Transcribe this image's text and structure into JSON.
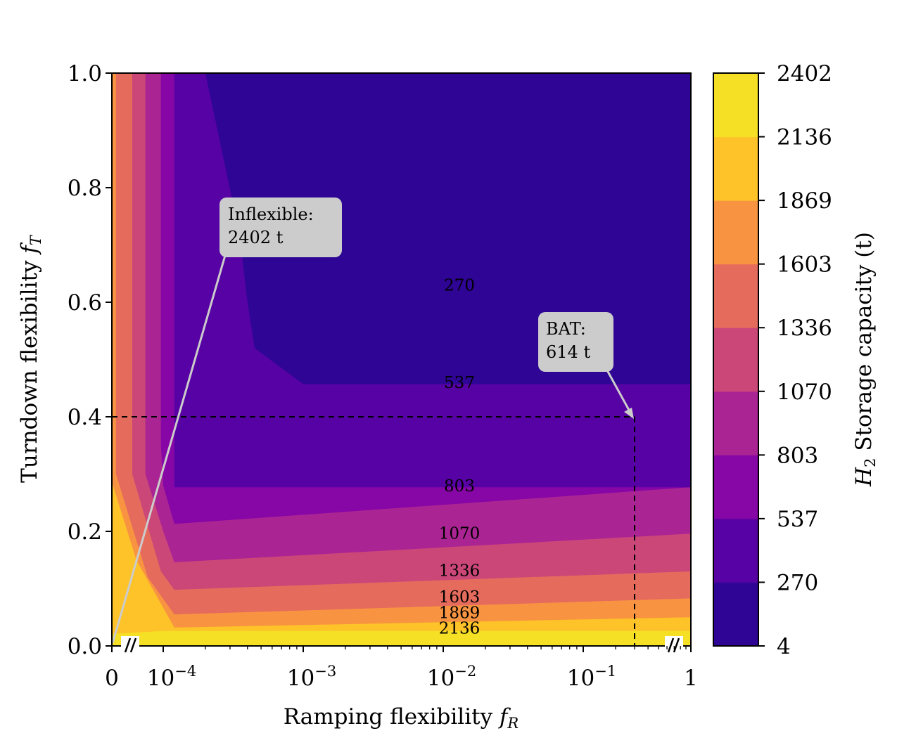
{
  "chart_data": {
    "type": "contour",
    "x_scale": "log-with-zero-break",
    "xlabel": "Ramping flexibility f_R",
    "xlabel_parts": {
      "main": "Ramping flexibility ",
      "sym": "f",
      "sub": "R"
    },
    "ylabel": "Turndown flexibility f_T",
    "ylabel_parts": {
      "main": "Turndown flexibility ",
      "sym": "f",
      "sub": "T"
    },
    "xlim": [
      0,
      1
    ],
    "ylim": [
      0,
      1
    ],
    "x_ticks": [
      {
        "value": 0,
        "base": "0",
        "exp": ""
      },
      {
        "value": 0.0001,
        "base": "10",
        "exp": "−4"
      },
      {
        "value": 0.001,
        "base": "10",
        "exp": "−3"
      },
      {
        "value": 0.01,
        "base": "10",
        "exp": "−2"
      },
      {
        "value": 0.1,
        "base": "10",
        "exp": "−1"
      },
      {
        "value": 1,
        "base": "1",
        "exp": ""
      }
    ],
    "y_ticks": [
      "0.0",
      "0.2",
      "0.4",
      "0.6",
      "0.8",
      "1.0"
    ],
    "levels": [
      4,
      270,
      537,
      803,
      1070,
      1336,
      1603,
      1869,
      2136,
      2402
    ],
    "level_labels": [
      "4",
      "270",
      "537",
      "803",
      "1070",
      "1336",
      "1603",
      "1869",
      "2136",
      "2402"
    ],
    "colors": [
      "#2e0595",
      "#5702a4",
      "#8606a6",
      "#ab2494",
      "#cb4778",
      "#e56b5d",
      "#f89441",
      "#fdc328",
      "#f5e026"
    ],
    "colorbar_label": "H_2 Storage capacity (t)",
    "colorbar_label_parts": {
      "sym": "H",
      "sub": "2",
      "main": " Storage capacity (t)"
    },
    "contour_labels": [
      {
        "text": "270",
        "x": 0.01,
        "y": 0.63
      },
      {
        "text": "537",
        "x": 0.01,
        "y": 0.46
      },
      {
        "text": "803",
        "x": 0.01,
        "y": 0.28
      },
      {
        "text": "1070",
        "x": 0.01,
        "y": 0.197
      },
      {
        "text": "1336",
        "x": 0.01,
        "y": 0.132
      },
      {
        "text": "1603",
        "x": 0.01,
        "y": 0.086
      },
      {
        "text": "1869",
        "x": 0.01,
        "y": 0.058
      },
      {
        "text": "2136",
        "x": 0.01,
        "y": 0.031
      }
    ],
    "annotations": [
      {
        "name": "inflexible",
        "line1": "Inflexible:",
        "line2": "2402 t",
        "target": [
          0,
          0
        ]
      },
      {
        "name": "bat",
        "line1": "BAT:",
        "line2": "614 t",
        "target": [
          0.3,
          0.4
        ]
      }
    ],
    "reference_point": {
      "x": 0.3,
      "y": 0.4,
      "value_t": 614
    }
  }
}
